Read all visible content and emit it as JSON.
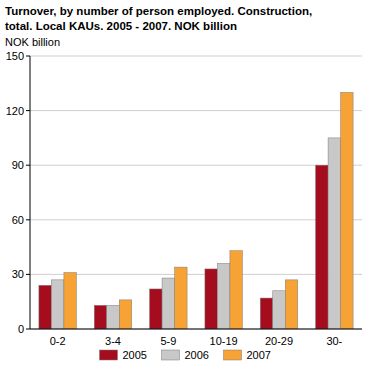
{
  "chart_data": {
    "type": "bar",
    "title": [
      "Turnover, by number of person employed. Construction,",
      "total. Local KAUs. 2005 - 2007. NOK billion"
    ],
    "y_label": "NOK billion",
    "categories": [
      "0-2",
      "3-4",
      "5-9",
      "10-19",
      "20-29",
      "30-"
    ],
    "series": [
      {
        "name": "2005",
        "color": "#a50d1e",
        "values": [
          24,
          13,
          22,
          33,
          17,
          90
        ]
      },
      {
        "name": "2006",
        "color": "#c8c8c8",
        "values": [
          27,
          13,
          28,
          36,
          21,
          105
        ]
      },
      {
        "name": "2007",
        "color": "#f7a234",
        "values": [
          31,
          16,
          34,
          43,
          27,
          130
        ]
      }
    ],
    "ylim": [
      0,
      150
    ],
    "yticks": [
      0,
      30,
      60,
      90,
      120,
      150
    ],
    "grid": true,
    "legend": "bottom"
  }
}
